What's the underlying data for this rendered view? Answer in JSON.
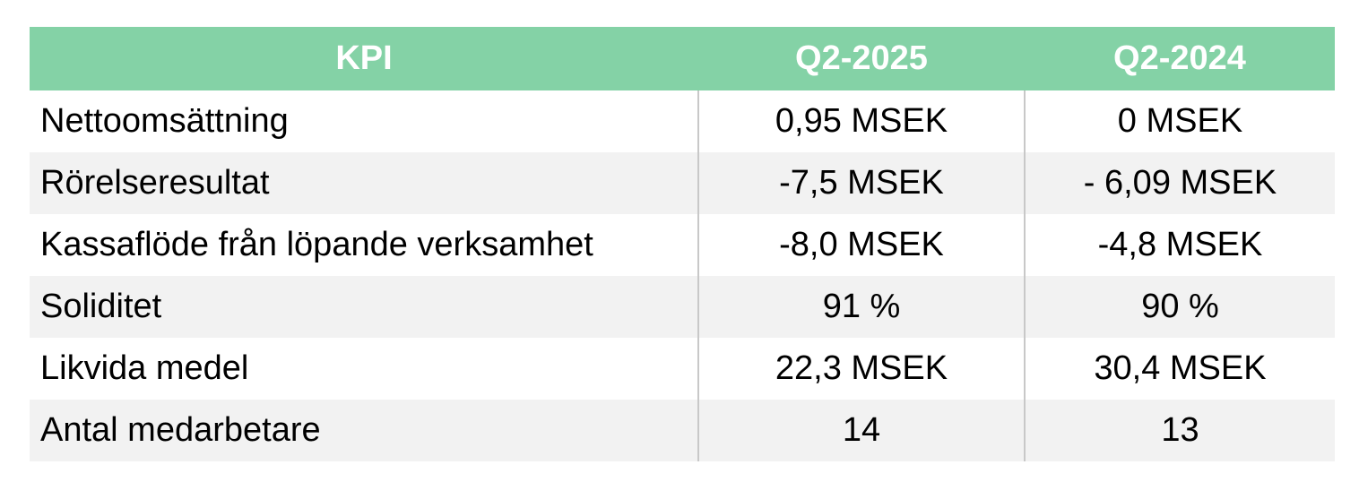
{
  "table": {
    "header": [
      "KPI",
      "Q2-2025",
      "Q2-2024"
    ],
    "rows": [
      [
        "Nettoomsättning",
        "0,95 MSEK",
        "0 MSEK"
      ],
      [
        "Rörelseresultat",
        "-7,5 MSEK",
        "- 6,09 MSEK"
      ],
      [
        "Kassaflöde från löpande verksamhet",
        "-8,0 MSEK",
        "-4,8 MSEK"
      ],
      [
        "Soliditet",
        "91 %",
        "90 %"
      ],
      [
        "Likvida medel",
        "22,3 MSEK",
        "30,4 MSEK"
      ],
      [
        "Antal medarbetare",
        "14",
        "13"
      ]
    ]
  }
}
